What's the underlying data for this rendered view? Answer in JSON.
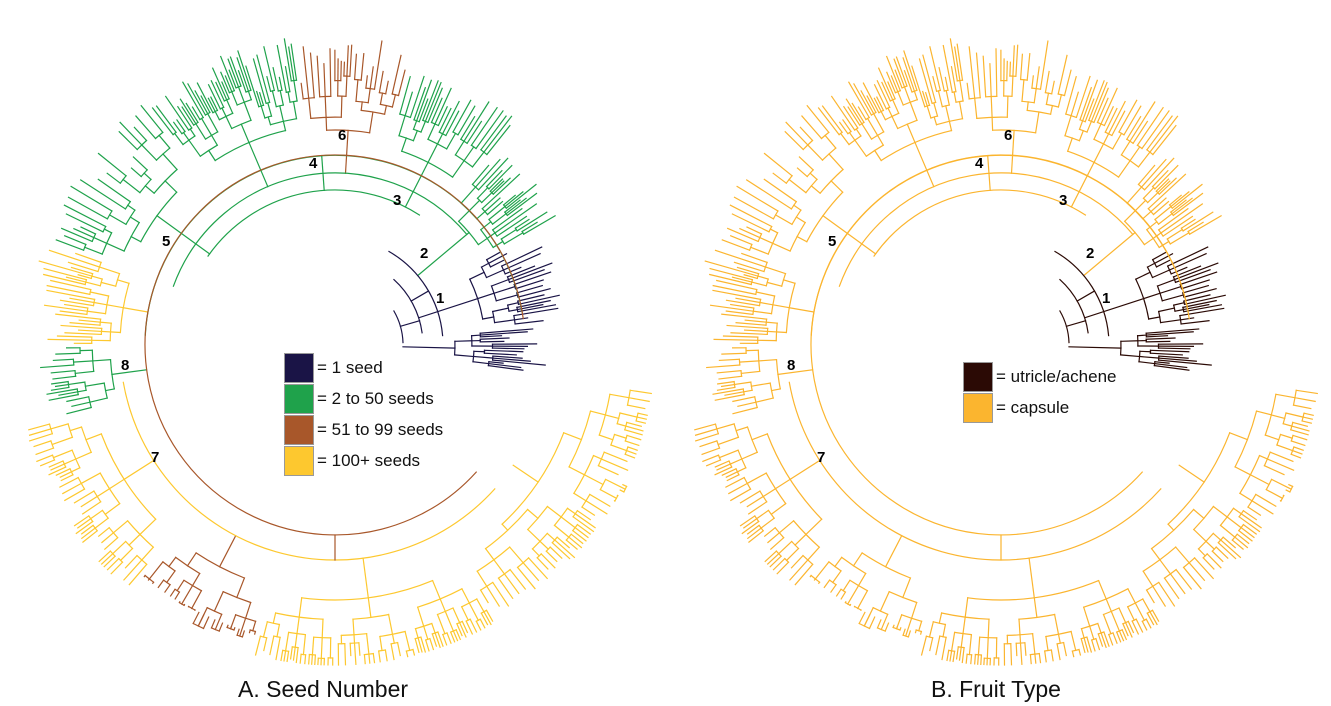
{
  "panels": [
    {
      "caption": "A. Seed Number",
      "legend": [
        {
          "label": "= 1 seed",
          "color": "#1a1446"
        },
        {
          "label": "= 2 to 50 seeds",
          "color": "#1fa24b"
        },
        {
          "label": "= 51 to 99 seeds",
          "color": "#a8572a"
        },
        {
          "label": "= 100+ seeds",
          "color": "#fdc82f"
        }
      ],
      "node_labels": [
        "1",
        "2",
        "3",
        "4",
        "5",
        "6",
        "7",
        "8"
      ]
    },
    {
      "caption": "B. Fruit Type",
      "legend": [
        {
          "label": "= utricle/achene",
          "color": "#2b0a05"
        },
        {
          "label": "= capsule",
          "color": "#fbb52f"
        }
      ],
      "node_labels": [
        "1",
        "2",
        "3",
        "4",
        "5",
        "6",
        "7",
        "8"
      ]
    }
  ]
}
